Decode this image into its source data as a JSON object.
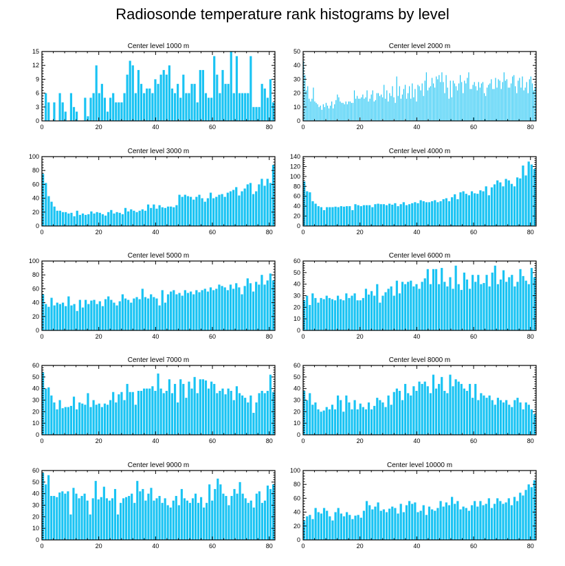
{
  "figure_title": "Radiosonde temperature rank histograms by level",
  "colors": {
    "bar": "#19c3f3",
    "axis": "#000000"
  },
  "chart_data": [
    {
      "type": "bar",
      "title": "Center level 1000 m",
      "xlim": [
        0,
        82
      ],
      "ylim": [
        0,
        15
      ],
      "xticks": [
        0,
        20,
        40,
        60,
        80
      ],
      "yticks": [
        0,
        3,
        6,
        9,
        12,
        15
      ],
      "values": [
        0,
        6,
        4,
        0,
        4,
        0,
        6,
        4,
        2,
        0,
        6,
        3,
        2,
        0,
        0,
        5,
        1,
        5,
        6,
        12,
        6,
        8,
        5,
        2,
        5,
        6,
        4,
        4,
        4,
        6,
        10,
        13,
        12,
        6,
        11,
        8,
        6,
        7,
        7,
        6,
        9,
        8,
        10,
        11,
        10,
        12,
        7,
        6,
        8,
        5,
        10,
        6,
        6,
        8,
        8,
        4,
        11,
        11,
        6,
        5,
        5,
        14,
        10,
        6,
        11,
        8,
        8,
        15,
        6,
        14,
        6,
        6,
        6,
        6,
        14,
        3,
        3,
        3,
        8,
        7,
        5,
        9,
        4
      ]
    },
    {
      "type": "bar",
      "title": "Center level 2000 m",
      "xlim": [
        0,
        82
      ],
      "ylim": [
        0,
        50
      ],
      "xticks": [
        0,
        20,
        40,
        60,
        80
      ],
      "yticks": [
        0,
        10,
        20,
        30,
        40,
        50
      ],
      "values": [
        43,
        33,
        22,
        25,
        16,
        14,
        16,
        24,
        14,
        13,
        12,
        10,
        11,
        8,
        12,
        10,
        13,
        11,
        9,
        11,
        14,
        9,
        12,
        15,
        19,
        17,
        14,
        13,
        13,
        12,
        14,
        12,
        14,
        14,
        13,
        13,
        22,
        16,
        18,
        16,
        16,
        17,
        19,
        16,
        17,
        22,
        14,
        16,
        19,
        22,
        14,
        15,
        20,
        20,
        18,
        19,
        17,
        26,
        16,
        22,
        14,
        20,
        18,
        25,
        17,
        13,
        32,
        18,
        25,
        16,
        19,
        23,
        26,
        16,
        20,
        25,
        16,
        27,
        17,
        23,
        14,
        26,
        25,
        22,
        27,
        18,
        29,
        35,
        22,
        24,
        25,
        31,
        27,
        24,
        32,
        30,
        33,
        28,
        35,
        28,
        20,
        33,
        24,
        16,
        29,
        17,
        29,
        27,
        25,
        22,
        27,
        33,
        28,
        20,
        29,
        27,
        31,
        35,
        23,
        23,
        26,
        28,
        25,
        22,
        28,
        24,
        27,
        28,
        20,
        18,
        24,
        26,
        27,
        30,
        23,
        23,
        31,
        24,
        30,
        29,
        23,
        28,
        35,
        29,
        30,
        24,
        24,
        27,
        32,
        33,
        25,
        20,
        29,
        31,
        24,
        32,
        22,
        24,
        28,
        20,
        30,
        32,
        27,
        22,
        24
      ]
    },
    {
      "type": "bar",
      "title": "Center level 3000 m",
      "xlim": [
        0,
        82
      ],
      "ylim": [
        0,
        100
      ],
      "xticks": [
        0,
        20,
        40,
        60,
        80
      ],
      "yticks": [
        0,
        20,
        40,
        60,
        80,
        100
      ],
      "values": [
        75,
        62,
        43,
        35,
        28,
        22,
        22,
        20,
        20,
        18,
        19,
        14,
        22,
        16,
        18,
        16,
        17,
        21,
        18,
        20,
        19,
        17,
        15,
        20,
        23,
        18,
        20,
        19,
        17,
        26,
        21,
        24,
        22,
        20,
        22,
        24,
        22,
        31,
        26,
        31,
        25,
        30,
        27,
        26,
        28,
        28,
        27,
        30,
        45,
        42,
        45,
        43,
        42,
        38,
        42,
        45,
        40,
        35,
        40,
        48,
        40,
        42,
        45,
        46,
        42,
        48,
        50,
        52,
        56,
        44,
        50,
        54,
        60,
        62,
        46,
        50,
        60,
        68,
        58,
        68,
        62,
        88
      ]
    },
    {
      "type": "bar",
      "title": "Center level 4000 m",
      "xlim": [
        0,
        82
      ],
      "ylim": [
        0,
        140
      ],
      "xticks": [
        0,
        20,
        40,
        60,
        80
      ],
      "yticks": [
        0,
        20,
        40,
        60,
        80,
        100,
        120,
        140
      ],
      "values": [
        90,
        70,
        68,
        50,
        45,
        40,
        38,
        32,
        38,
        38,
        38,
        39,
        38,
        40,
        39,
        40,
        40,
        32,
        44,
        42,
        40,
        42,
        42,
        42,
        38,
        44,
        45,
        44,
        44,
        42,
        45,
        43,
        46,
        40,
        44,
        48,
        42,
        44,
        46,
        48,
        46,
        52,
        50,
        48,
        48,
        50,
        52,
        48,
        50,
        54,
        56,
        50,
        58,
        64,
        54,
        68,
        70,
        65,
        62,
        70,
        66,
        65,
        72,
        70,
        80,
        62,
        78,
        84,
        92,
        88,
        80,
        95,
        92,
        85,
        80,
        98,
        96,
        122,
        102,
        130,
        124,
        115
      ]
    },
    {
      "type": "bar",
      "title": "Center level 5000 m",
      "xlim": [
        0,
        82
      ],
      "ylim": [
        0,
        100
      ],
      "xticks": [
        0,
        20,
        40,
        60,
        80
      ],
      "yticks": [
        0,
        20,
        40,
        60,
        80,
        100
      ],
      "values": [
        52,
        38,
        34,
        47,
        36,
        40,
        38,
        40,
        35,
        49,
        36,
        38,
        28,
        44,
        33,
        44,
        38,
        43,
        44,
        38,
        42,
        35,
        45,
        49,
        44,
        40,
        36,
        42,
        52,
        46,
        44,
        40,
        46,
        48,
        45,
        60,
        48,
        46,
        52,
        48,
        46,
        36,
        58,
        40,
        52,
        56,
        58,
        52,
        54,
        50,
        58,
        54,
        56,
        52,
        58,
        55,
        58,
        60,
        56,
        62,
        58,
        60,
        66,
        64,
        62,
        58,
        66,
        60,
        68,
        62,
        52,
        64,
        75,
        68,
        56,
        70,
        66,
        80,
        66,
        72,
        82,
        72
      ]
    },
    {
      "type": "bar",
      "title": "Center level 6000 m",
      "xlim": [
        0,
        82
      ],
      "ylim": [
        0,
        60
      ],
      "xticks": [
        0,
        20,
        40,
        60,
        80
      ],
      "yticks": [
        0,
        10,
        20,
        30,
        40,
        50,
        60
      ],
      "values": [
        26,
        30,
        22,
        32,
        28,
        24,
        28,
        27,
        30,
        28,
        27,
        26,
        30,
        27,
        26,
        32,
        28,
        30,
        32,
        26,
        26,
        28,
        36,
        31,
        34,
        30,
        40,
        24,
        30,
        33,
        36,
        38,
        30,
        43,
        32,
        42,
        40,
        42,
        43,
        38,
        40,
        36,
        42,
        45,
        53,
        40,
        53,
        53,
        40,
        54,
        42,
        38,
        46,
        36,
        56,
        40,
        35,
        50,
        44,
        36,
        48,
        42,
        48,
        40,
        41,
        48,
        38,
        50,
        56,
        40,
        44,
        52,
        42,
        46,
        48,
        38,
        42,
        53,
        47,
        43,
        40,
        54,
        46
      ]
    },
    {
      "type": "bar",
      "title": "Center level 7000 m",
      "xlim": [
        0,
        82
      ],
      "ylim": [
        0,
        60
      ],
      "xticks": [
        0,
        20,
        40,
        60,
        80
      ],
      "yticks": [
        0,
        10,
        20,
        30,
        40,
        50,
        60
      ],
      "values": [
        54,
        40,
        41,
        34,
        28,
        22,
        30,
        23,
        24,
        24,
        25,
        33,
        22,
        28,
        27,
        26,
        36,
        24,
        30,
        26,
        27,
        24,
        27,
        26,
        30,
        37,
        28,
        35,
        37,
        30,
        44,
        37,
        37,
        26,
        38,
        38,
        40,
        40,
        40,
        42,
        38,
        53,
        40,
        36,
        38,
        48,
        36,
        44,
        28,
        48,
        44,
        32,
        46,
        40,
        50,
        36,
        48,
        48,
        47,
        40,
        46,
        44,
        36,
        38,
        40,
        35,
        40,
        38,
        30,
        42,
        36,
        34,
        32,
        28,
        34,
        19,
        28,
        36,
        38,
        36,
        38,
        52,
        37
      ]
    },
    {
      "type": "bar",
      "title": "Center level 8000 m",
      "xlim": [
        0,
        82
      ],
      "ylim": [
        0,
        60
      ],
      "xticks": [
        0,
        20,
        40,
        60,
        80
      ],
      "yticks": [
        0,
        10,
        20,
        30,
        40,
        50,
        60
      ],
      "values": [
        38,
        30,
        36,
        26,
        28,
        22,
        20,
        21,
        24,
        22,
        26,
        22,
        34,
        30,
        20,
        34,
        28,
        22,
        30,
        22,
        27,
        24,
        22,
        28,
        22,
        25,
        32,
        30,
        28,
        24,
        34,
        26,
        37,
        40,
        38,
        30,
        44,
        36,
        34,
        42,
        38,
        46,
        44,
        46,
        42,
        36,
        52,
        40,
        44,
        50,
        38,
        36,
        52,
        42,
        48,
        46,
        44,
        40,
        38,
        44,
        32,
        44,
        30,
        36,
        34,
        32,
        34,
        30,
        26,
        32,
        30,
        28,
        30,
        26,
        24,
        30,
        32,
        28,
        22,
        28,
        26,
        22,
        18
      ]
    },
    {
      "type": "bar",
      "title": "Center level 9000 m",
      "xlim": [
        0,
        82
      ],
      "ylim": [
        0,
        60
      ],
      "xticks": [
        0,
        20,
        40,
        60,
        80
      ],
      "yticks": [
        0,
        10,
        20,
        30,
        40,
        50,
        60
      ],
      "values": [
        58,
        48,
        56,
        38,
        38,
        37,
        41,
        42,
        40,
        42,
        22,
        45,
        40,
        36,
        38,
        40,
        34,
        22,
        36,
        51,
        35,
        37,
        46,
        36,
        34,
        36,
        44,
        22,
        32,
        36,
        37,
        38,
        40,
        32,
        51,
        42,
        44,
        34,
        40,
        45,
        34,
        36,
        38,
        32,
        36,
        30,
        28,
        34,
        38,
        30,
        44,
        36,
        34,
        32,
        36,
        40,
        32,
        37,
        28,
        32,
        48,
        34,
        44,
        53,
        48,
        40,
        38,
        30,
        38,
        44,
        40,
        50,
        40,
        36,
        32,
        34,
        28,
        40,
        42,
        32,
        34,
        47,
        44,
        48
      ]
    },
    {
      "type": "bar",
      "title": "Center level 10000 m",
      "xlim": [
        0,
        82
      ],
      "ylim": [
        0,
        100
      ],
      "xticks": [
        0,
        20,
        40,
        60,
        80
      ],
      "yticks": [
        0,
        20,
        40,
        60,
        80,
        100
      ],
      "values": [
        28,
        34,
        36,
        30,
        46,
        40,
        38,
        46,
        42,
        34,
        28,
        40,
        46,
        38,
        34,
        40,
        36,
        30,
        35,
        36,
        32,
        42,
        56,
        50,
        44,
        48,
        54,
        42,
        44,
        40,
        45,
        48,
        46,
        38,
        52,
        40,
        50,
        56,
        52,
        54,
        40,
        42,
        50,
        36,
        48,
        44,
        42,
        46,
        56,
        48,
        54,
        50,
        62,
        52,
        56,
        44,
        48,
        46,
        42,
        50,
        56,
        48,
        56,
        50,
        52,
        60,
        46,
        52,
        60,
        56,
        52,
        54,
        60,
        50,
        62,
        56,
        68,
        64,
        72,
        80,
        76,
        86
      ]
    }
  ]
}
